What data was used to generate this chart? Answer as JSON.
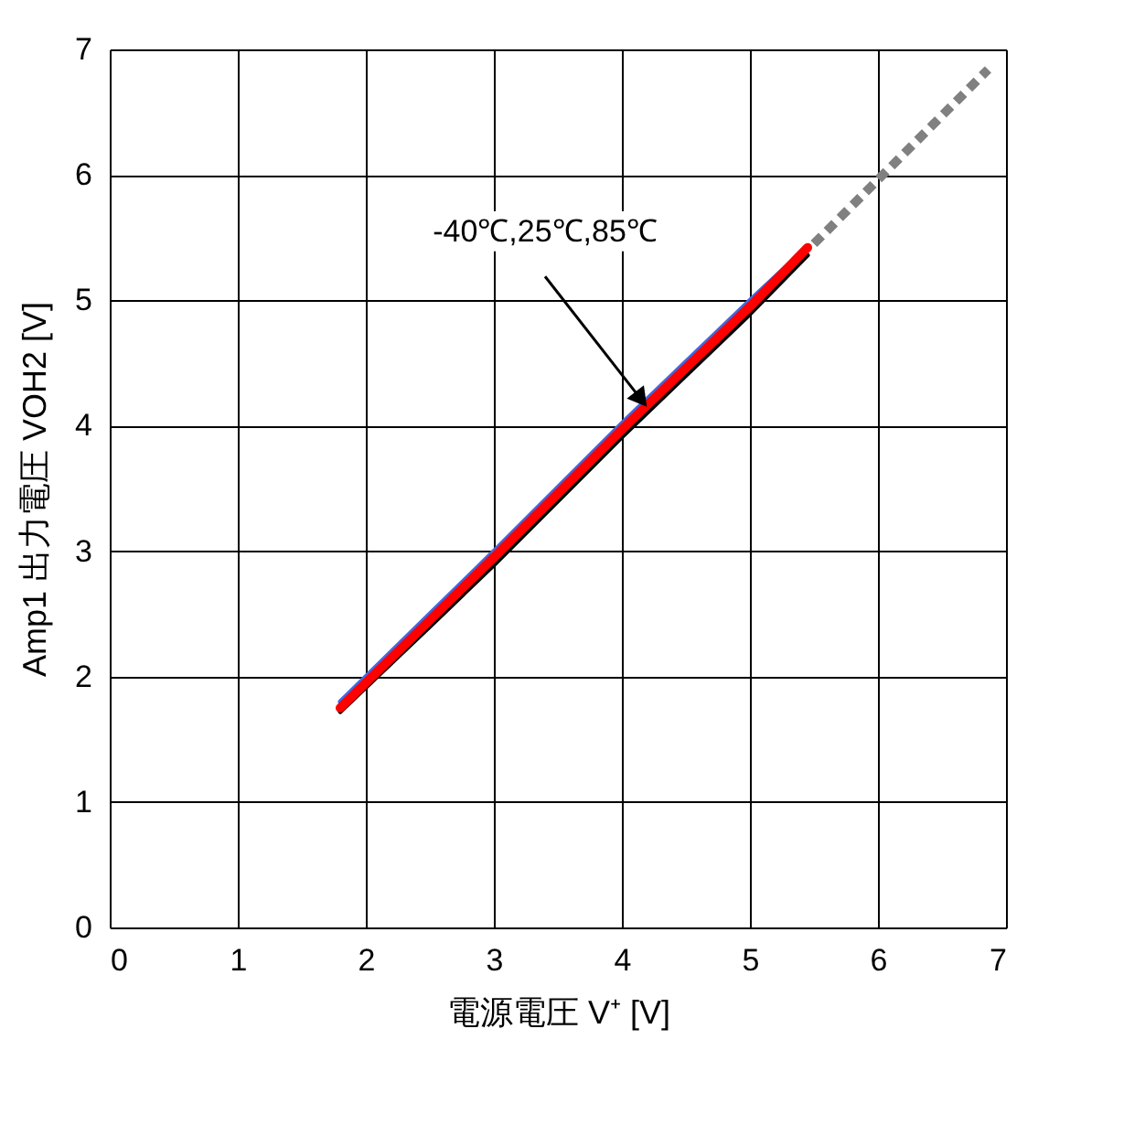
{
  "chart_data": {
    "type": "line",
    "xlabel": "電源電圧 V⁺ [V]",
    "ylabel": "Amp1 出力電圧 VOH2 [V]",
    "xlim": [
      0,
      7
    ],
    "ylim": [
      0,
      7
    ],
    "xticks": [
      0,
      1,
      2,
      3,
      4,
      5,
      6,
      7
    ],
    "yticks": [
      0,
      1,
      2,
      3,
      4,
      5,
      6,
      7
    ],
    "grid": true,
    "line_style": "solid",
    "series": [
      {
        "color": "#4169e1",
        "x": [
          1.8,
          2.5,
          3,
          4,
          5,
          5.4
        ],
        "values": [
          1.8,
          2.5,
          3.0,
          4.02,
          5.0,
          5.38
        ]
      },
      {
        "color": "#000000",
        "x": [
          1.8,
          2.5,
          3,
          4,
          5,
          5.45
        ],
        "values": [
          1.72,
          2.4,
          2.89,
          3.91,
          4.89,
          5.36
        ]
      },
      {
        "color": "#ff0000",
        "x": [
          1.8,
          2.5,
          3,
          4,
          5,
          5.45
        ],
        "values": [
          1.75,
          2.45,
          2.95,
          3.97,
          4.95,
          5.42
        ]
      },
      {
        "color": "#808080",
        "line_style": "dashed",
        "x": [
          5.5,
          6.86
        ],
        "values": [
          5.45,
          6.84
        ]
      }
    ],
    "annotations": [
      {
        "text": "-40℃,25℃,85℃",
        "x": 4.15,
        "y": 4.21
      }
    ]
  }
}
